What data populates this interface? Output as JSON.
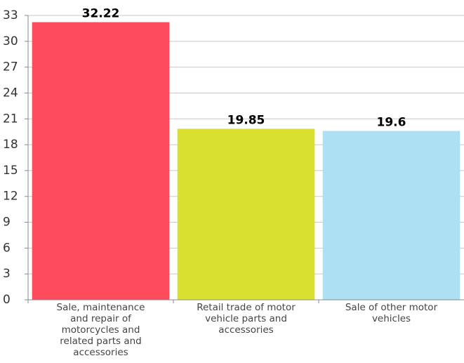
{
  "chart_data": {
    "type": "bar",
    "categories": [
      "Sale, maintenance and repair of motorcycles and related parts and accessories",
      "Retail trade of motor vehicle parts and accessories",
      "Sale of other motor vehicles"
    ],
    "values": [
      32.22,
      19.85,
      19.6
    ],
    "colors": [
      "#fd4a5c",
      "#d9e02f",
      "#ace0f2"
    ],
    "ylim": [
      0,
      33
    ],
    "yticks": [
      0,
      3,
      6,
      9,
      12,
      15,
      18,
      21,
      24,
      27,
      30,
      33
    ],
    "grid": true
  }
}
